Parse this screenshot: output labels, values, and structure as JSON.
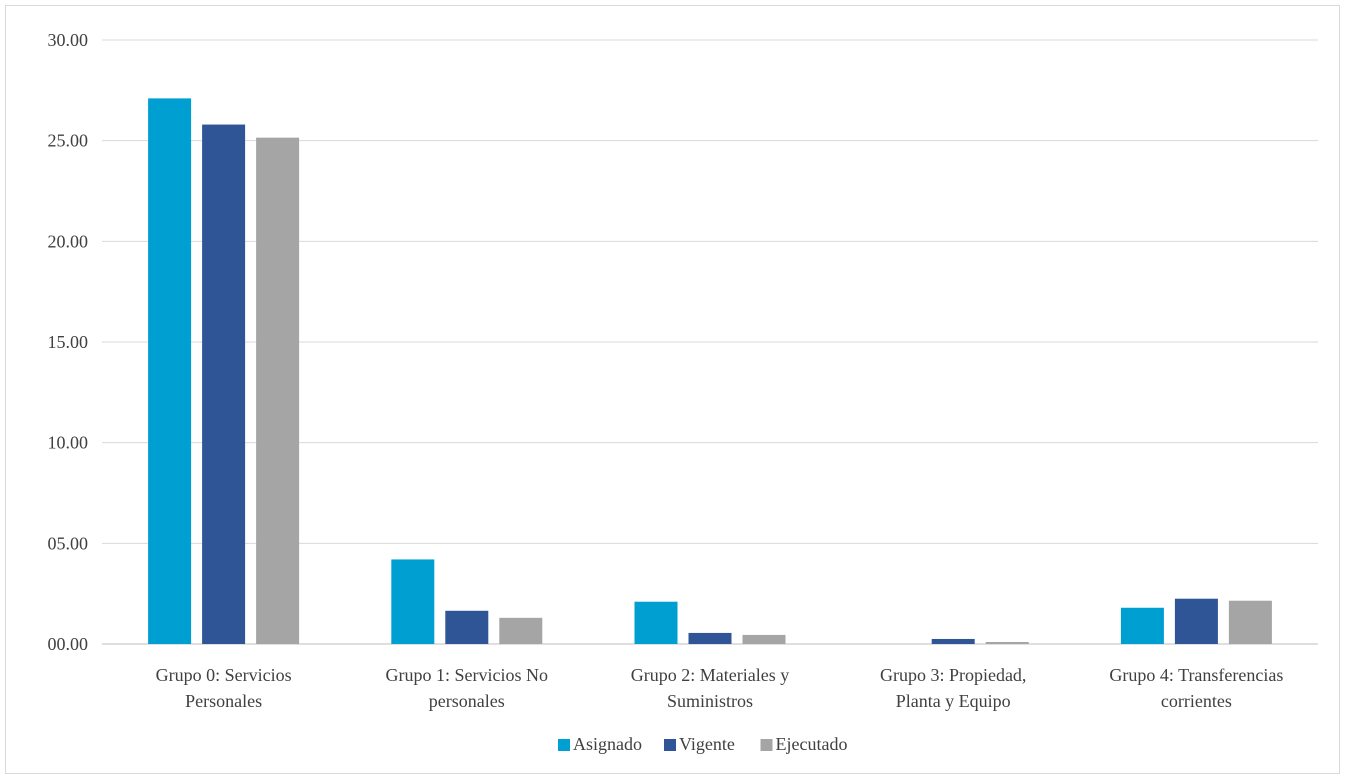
{
  "chart_data": {
    "type": "bar",
    "title": "",
    "xlabel": "",
    "ylabel": "",
    "ylim": [
      0,
      30
    ],
    "y_ticks": [
      "00.00",
      "05.00",
      "10.00",
      "15.00",
      "20.00",
      "25.00",
      "30.00"
    ],
    "grid": true,
    "legend_position": "bottom",
    "categories": [
      [
        "Grupo 0: Servicios",
        "Personales"
      ],
      [
        "Grupo 1: Servicios No",
        "personales"
      ],
      [
        "Grupo 2: Materiales y",
        "Suministros"
      ],
      [
        "Grupo 3: Propiedad,",
        "Planta y Equipo"
      ],
      [
        "Grupo 4: Transferencias",
        "corrientes"
      ]
    ],
    "series": [
      {
        "name": "Asignado",
        "color": "#009FD1",
        "values": [
          27.1,
          4.2,
          2.1,
          0.0,
          1.8
        ]
      },
      {
        "name": "Vigente",
        "color": "#2F5597",
        "values": [
          25.8,
          1.65,
          0.55,
          0.25,
          2.25
        ]
      },
      {
        "name": "Ejecutado",
        "color": "#A5A5A5",
        "values": [
          25.15,
          1.3,
          0.45,
          0.1,
          2.15
        ]
      }
    ]
  }
}
